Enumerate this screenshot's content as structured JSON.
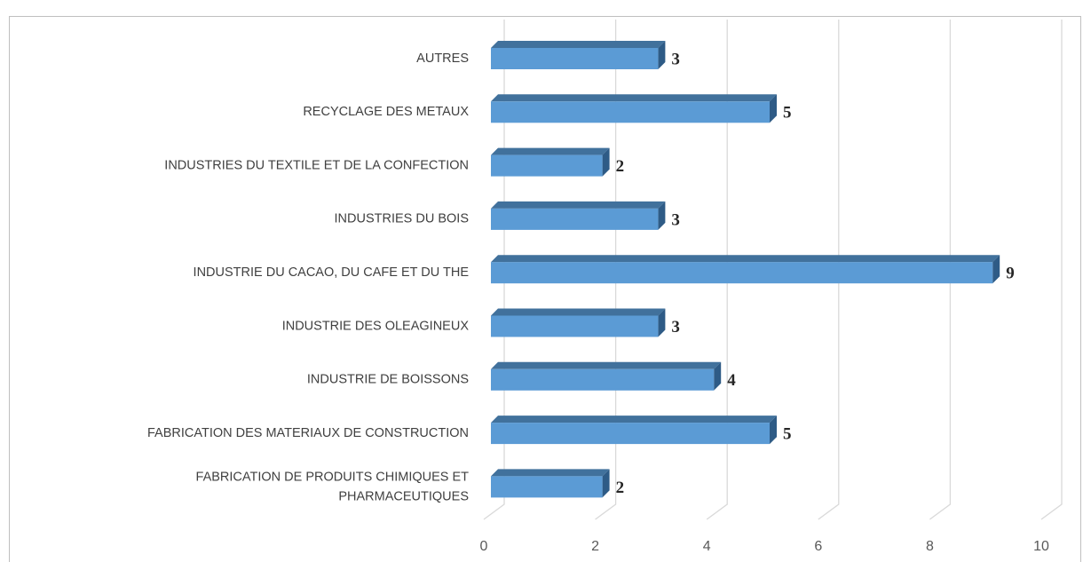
{
  "chart_data": {
    "type": "bar",
    "orientation": "horizontal",
    "categories": [
      "FABRICATION DE PRODUITS CHIMIQUES ET\nPHARMACEUTIQUES",
      "FABRICATION DES MATERIAUX DE CONSTRUCTION",
      "INDUSTRIE DE BOISSONS",
      "INDUSTRIE DES OLEAGINEUX",
      "INDUSTRIE DU CACAO, DU CAFE ET DU THE",
      "INDUSTRIES DU BOIS",
      "INDUSTRIES DU TEXTILE ET DE LA CONFECTION",
      "RECYCLAGE DES METAUX",
      "AUTRES"
    ],
    "values": [
      2,
      5,
      4,
      3,
      9,
      3,
      2,
      5,
      3
    ],
    "color": "#5b9bd5",
    "xlim": [
      0,
      10
    ],
    "xticks": [
      0,
      2,
      4,
      6,
      8,
      10
    ],
    "grid": true
  }
}
